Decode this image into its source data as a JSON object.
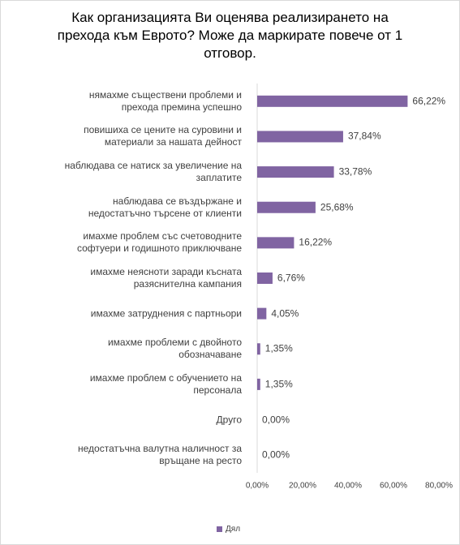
{
  "chart_data": {
    "type": "bar",
    "orientation": "horizontal",
    "title": "Как организацията Ви оценява реализирането на прехода към Еврото? Може да маркирате повече от 1 отговор.",
    "categories": [
      "нямахме съществени проблеми и прехода премина успешно",
      "повишиха се цените на суровини и материали за нашата дейност",
      "наблюдава се натиск за увеличение на заплатите",
      "наблюдава се въздържане и недостатъчно търсене от клиенти",
      "имахме проблем със счетоводните софтуери и годишното приключване",
      "имахме неясноти заради късната разяснителна кампания",
      "имахме затруднения с партньори",
      "имахме проблеми с двойното обозначаване",
      "имахме проблем с обучението на персонала",
      "Друго",
      "недостатъчна валутна наличност за връщане на ресто"
    ],
    "series": [
      {
        "name": "Дял",
        "color": "#8064a2",
        "values": [
          66.22,
          37.84,
          33.78,
          25.68,
          16.22,
          6.76,
          4.05,
          1.35,
          1.35,
          0,
          0
        ],
        "value_labels": [
          "66,22%",
          "37,84%",
          "33,78%",
          "25,68%",
          "16,22%",
          "6,76%",
          "4,05%",
          "1,35%",
          "1,35%",
          "0,00%",
          "0,00%"
        ]
      }
    ],
    "xlim": [
      0,
      80
    ],
    "xticks": [
      {
        "value": 0,
        "label": "0,00%"
      },
      {
        "value": 20,
        "label": "20,00%"
      },
      {
        "value": 40,
        "label": "40,00%"
      },
      {
        "value": 60,
        "label": "60,00%"
      },
      {
        "value": 80,
        "label": "80,00%"
      }
    ],
    "grid": false,
    "legend": "bottom"
  }
}
